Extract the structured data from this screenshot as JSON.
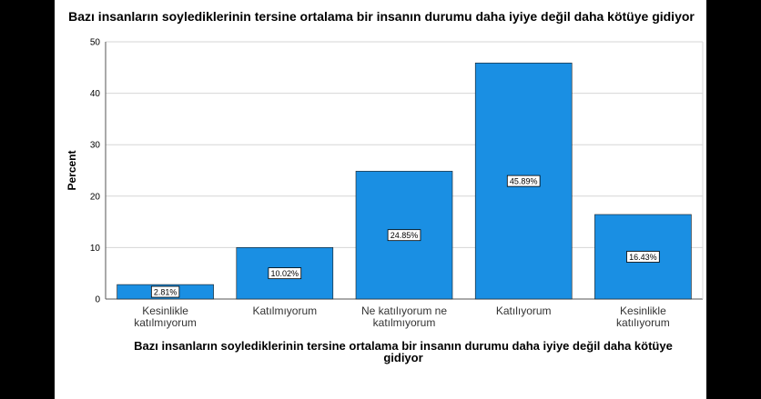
{
  "chart_data": {
    "type": "bar",
    "title": "Bazı insanların soylediklerinin tersine ortalama bir insanın durumu daha iyiye değil daha kötüye gidiyor",
    "xlabel_lines": [
      "Bazı insanların soylediklerinin tersine ortalama bir insanın durumu daha iyiye değil daha kötüye",
      "gidiyor"
    ],
    "ylabel": "Percent",
    "ylim": [
      0,
      50
    ],
    "yticks": [
      0,
      10,
      20,
      30,
      40,
      50
    ],
    "grid": true,
    "bar_color": "#1a8fe3",
    "categories": [
      [
        "Kesinlikle",
        "katılmıyorum"
      ],
      [
        "Katılmıyorum"
      ],
      [
        "Ne katılıyorum ne",
        "katılmıyorum"
      ],
      [
        "Katılıyorum"
      ],
      [
        "Kesinlikle",
        "katılıyorum"
      ]
    ],
    "values": [
      2.81,
      10.02,
      24.85,
      45.89,
      16.43
    ],
    "data_labels": [
      "2.81%",
      "10.02%",
      "24.85%",
      "45.89%",
      "16.43%"
    ]
  }
}
